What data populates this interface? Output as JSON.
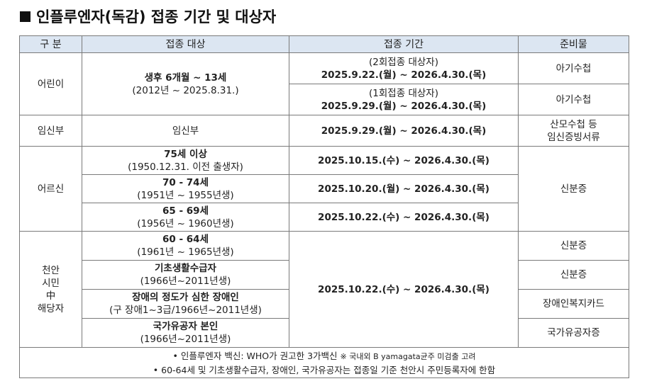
{
  "title": "인플루엔자(독감) 접종 기간 및 대상자",
  "table": {
    "header": [
      "구 분",
      "접종 대상",
      "접종 기간",
      "준비물"
    ],
    "children": {
      "group": "어린이",
      "target": "생후 6개월 ~ 13세",
      "target_range": "(2012년 ~ 2025.8.31.)",
      "doses": [
        {
          "note": "(2회접종 대상자)",
          "period": "2025.9.22.(월) ~ 2026.4.30.(목)",
          "prep": "아기수첩"
        },
        {
          "note": "(1회접종 대상자)",
          "period": "2025.9.29.(월) ~ 2026.4.30.(목)",
          "prep": "아기수첩"
        }
      ]
    },
    "pregnant": {
      "group": "임신부",
      "target": "임신부",
      "period": "2025.9.29.(월) ~ 2026.4.30.(목)",
      "prep": [
        "산모수첩 등",
        "임신증빙서류"
      ]
    },
    "seniors": {
      "group": "어르신",
      "prep": "신분증",
      "rows": [
        {
          "target": "75세 이상",
          "range": "(1950.12.31. 이전 출생자)",
          "period": "2025.10.15.(수) ~ 2026.4.30.(목)"
        },
        {
          "target": "70 - 74세",
          "range": "(1951년 ~ 1955년생)",
          "period": "2025.10.20.(월) ~ 2026.4.30.(목)"
        },
        {
          "target": "65 - 69세",
          "range": "(1956년 ~ 1960년생)",
          "period": "2025.10.22.(수) ~ 2026.4.30.(목)"
        }
      ]
    },
    "residents": {
      "group": [
        "천안",
        "시민",
        "中",
        "해당자"
      ],
      "period": "2025.10.22.(수) ~ 2026.4.30.(목)",
      "rows": [
        {
          "target": "60 - 64세",
          "range": "(1961년 ~ 1965년생)",
          "prep": "신분증"
        },
        {
          "target": "기초생활수급자",
          "range": "(1966년~2011년생)",
          "prep": "신분증"
        },
        {
          "target": "장애의 정도가 심한 장애인",
          "range": "(구 장애1~3급/1966년~2011년생)",
          "prep": "장애인복지카드"
        },
        {
          "target": "국가유공자 본인",
          "range": "(1966년~2011년생)",
          "prep": "국가유공자증"
        }
      ]
    },
    "footnotes": [
      {
        "text": "• 인플루엔자 백신: WHO가 권고한 3가백신",
        "note": "※ 국내외 B yamagata균주 미검출 고려"
      },
      {
        "text": "• 60-64세 및 기초생활수급자, 장애인, 국가유공자는 접종일 기준 천안시 주민등록자에 한함"
      }
    ]
  }
}
